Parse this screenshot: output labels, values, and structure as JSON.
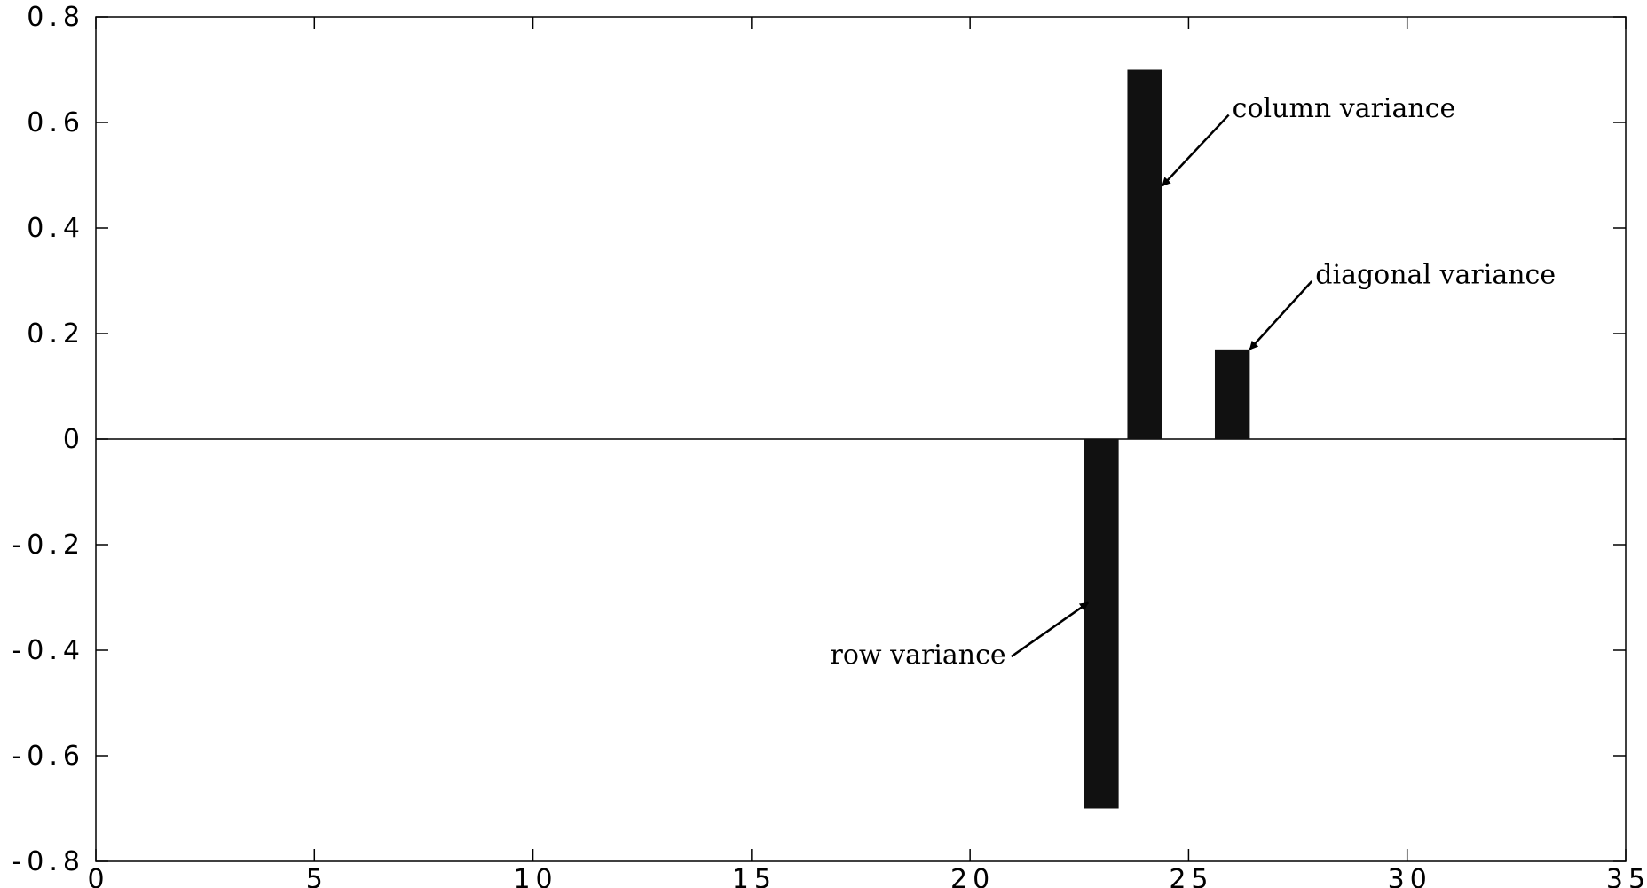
{
  "chart_data": {
    "type": "bar",
    "title": "",
    "xlabel": "",
    "ylabel": "",
    "xlim": [
      0,
      35
    ],
    "ylim": [
      -0.8,
      0.8
    ],
    "x_ticks": [
      0,
      5,
      10,
      15,
      20,
      25,
      30,
      35
    ],
    "x_tick_labels": [
      "0",
      "5",
      "10",
      "15",
      "20",
      "25",
      "30",
      "35"
    ],
    "y_ticks": [
      0.8,
      0.6,
      0.4,
      0.2,
      0,
      -0.2,
      -0.4,
      -0.6,
      -0.8
    ],
    "y_tick_labels": [
      "0.8",
      "0.6",
      "0.4",
      "0.2",
      "0",
      "-0.2",
      "-0.4",
      "-0.6",
      "-0.8"
    ],
    "grid": false,
    "bar_color": "#111111",
    "bar_width": 0.8,
    "bars": [
      {
        "x": 23,
        "value": -0.7
      },
      {
        "x": 24,
        "value": 0.7
      },
      {
        "x": 26,
        "value": 0.17
      }
    ],
    "annotations": [
      {
        "text": "column variance",
        "target_x": 24.4,
        "target_y": 0.48,
        "text_x": 26.0,
        "text_y": 0.61
      },
      {
        "text": "diagonal variance",
        "target_x": 26.4,
        "target_y": 0.17,
        "text_x": 27.9,
        "text_y": 0.295
      },
      {
        "text": "row variance",
        "target_x": 22.7,
        "target_y": -0.31,
        "text_x": 16.8,
        "text_y": -0.425
      }
    ]
  }
}
